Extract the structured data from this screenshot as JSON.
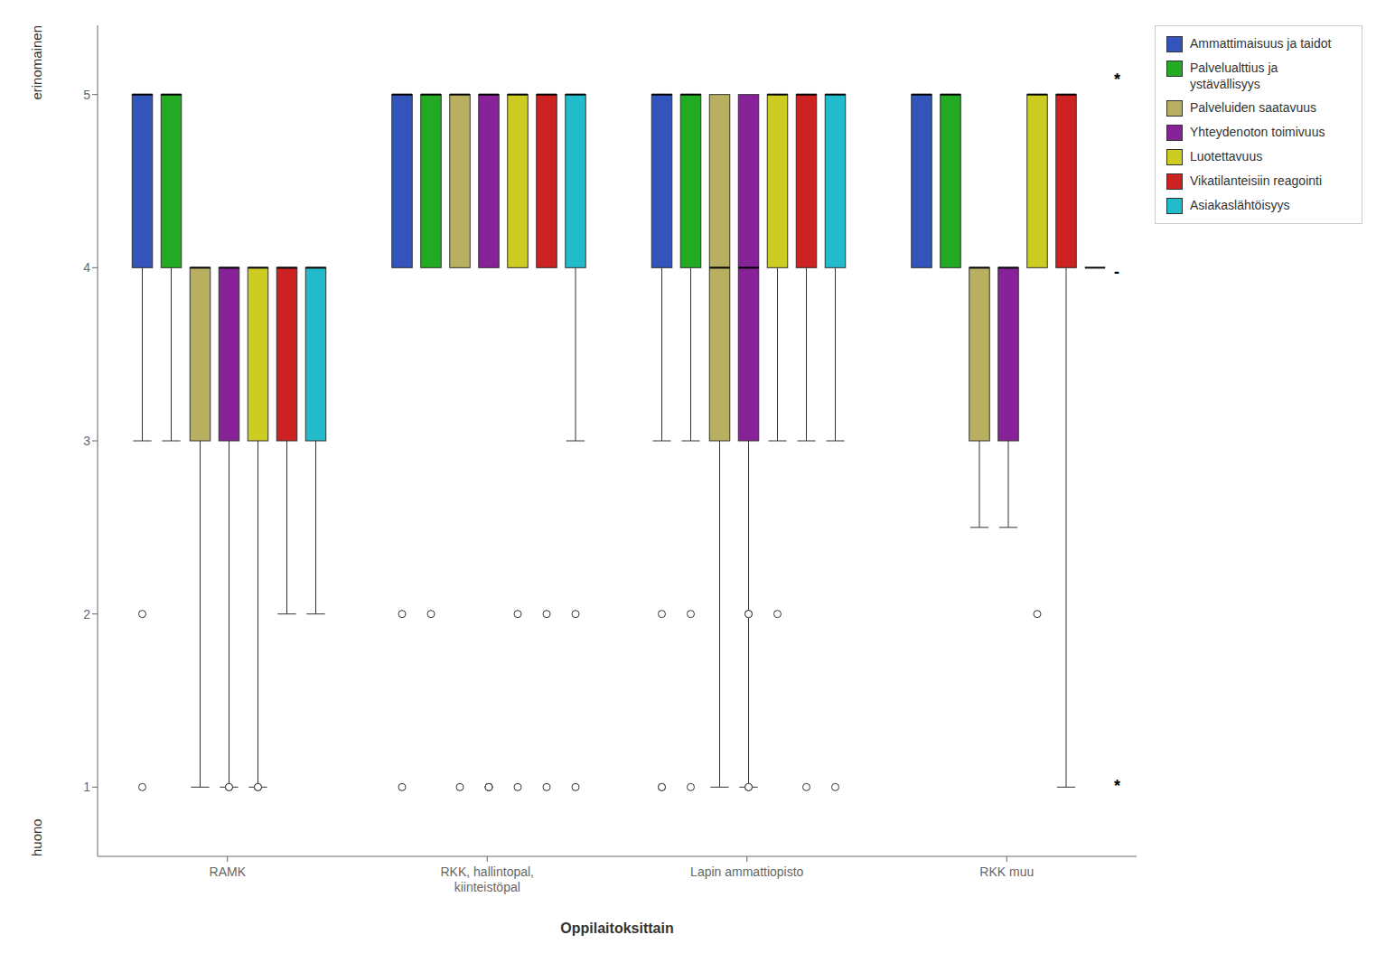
{
  "chart_data": {
    "type": "box",
    "xlabel": "Oppilaitoksittain",
    "ylabel_top": "erinomainen",
    "ylabel_bottom": "huono",
    "ylim": [
      0.6,
      5.4
    ],
    "yticks": [
      1,
      2,
      3,
      4,
      5
    ],
    "grid": false,
    "legend": "right",
    "categories": [
      "RAMK",
      "RKK, hallintopal,\nkiinteistöpal",
      "Lapin ammattiopisto",
      "RKK muu"
    ],
    "annotations": [
      {
        "text": "*",
        "y": 5.08
      },
      {
        "text": "-",
        "y": 3.97
      },
      {
        "text": "*",
        "y": 1.0
      }
    ],
    "series": [
      {
        "name": "Ammattimaisuus ja taidot",
        "color": "#3355bb",
        "values": [
          {
            "q1": 4.0,
            "median": 5.0,
            "q3": 5.0,
            "whisker_low": 3.0,
            "whisker_high": 5.0,
            "outliers": [
              2.0,
              1.0
            ]
          },
          {
            "q1": 4.0,
            "median": 5.0,
            "q3": 5.0,
            "whisker_low": 4.0,
            "whisker_high": 5.0,
            "outliers": [
              2.0,
              1.0
            ]
          },
          {
            "q1": 4.0,
            "median": 5.0,
            "q3": 5.0,
            "whisker_low": 3.0,
            "whisker_high": 5.0,
            "outliers": [
              2.0,
              1.0,
              1.0
            ]
          },
          {
            "q1": 4.0,
            "median": 5.0,
            "q3": 5.0,
            "whisker_low": 4.0,
            "whisker_high": 5.0,
            "outliers": []
          }
        ]
      },
      {
        "name": "Palvelualttius ja\nystävällisyys",
        "color": "#22aa22",
        "values": [
          {
            "q1": 4.0,
            "median": 5.0,
            "q3": 5.0,
            "whisker_low": 3.0,
            "whisker_high": 5.0,
            "outliers": []
          },
          {
            "q1": 4.0,
            "median": 5.0,
            "q3": 5.0,
            "whisker_low": 4.0,
            "whisker_high": 5.0,
            "outliers": [
              2.0
            ]
          },
          {
            "q1": 4.0,
            "median": 5.0,
            "q3": 5.0,
            "whisker_low": 3.0,
            "whisker_high": 5.0,
            "outliers": [
              2.0,
              1.0
            ]
          },
          {
            "q1": 4.0,
            "median": 5.0,
            "q3": 5.0,
            "whisker_low": 4.0,
            "whisker_high": 5.0,
            "outliers": []
          }
        ]
      },
      {
        "name": "Palveluiden saatavuus",
        "color": "#b8b060",
        "values": [
          {
            "q1": 3.0,
            "median": 4.0,
            "q3": 4.0,
            "whisker_low": 1.0,
            "whisker_high": 4.0,
            "outliers": []
          },
          {
            "q1": 4.0,
            "median": 5.0,
            "q3": 5.0,
            "whisker_low": 4.0,
            "whisker_high": 5.0,
            "outliers": [
              1.0
            ]
          },
          {
            "q1": 3.0,
            "median": 4.0,
            "q3": 5.0,
            "whisker_low": 1.0,
            "whisker_high": 5.0,
            "outliers": []
          },
          {
            "q1": 3.0,
            "median": 4.0,
            "q3": 4.0,
            "whisker_low": 2.5,
            "whisker_high": 4.0,
            "outliers": []
          }
        ]
      },
      {
        "name": "Yhteydenoton toimivuus",
        "color": "#882299",
        "values": [
          {
            "q1": 3.0,
            "median": 4.0,
            "q3": 4.0,
            "whisker_low": 1.0,
            "whisker_high": 4.0,
            "outliers": [
              1.0,
              1.0
            ]
          },
          {
            "q1": 4.0,
            "median": 5.0,
            "q3": 5.0,
            "whisker_low": 4.0,
            "whisker_high": 5.0,
            "outliers": [
              1.0,
              1.0,
              1.0,
              1.0
            ]
          },
          {
            "q1": 3.0,
            "median": 4.0,
            "q3": 5.0,
            "whisker_low": 1.0,
            "whisker_high": 5.0,
            "outliers": [
              2.0,
              2.0,
              1.0,
              1.0
            ]
          },
          {
            "q1": 3.0,
            "median": 4.0,
            "q3": 4.0,
            "whisker_low": 2.5,
            "whisker_high": 4.0,
            "outliers": []
          }
        ]
      },
      {
        "name": "Luotettavuus",
        "color": "#cccc22",
        "values": [
          {
            "q1": 3.0,
            "median": 4.0,
            "q3": 4.0,
            "whisker_low": 1.0,
            "whisker_high": 4.0,
            "outliers": [
              1.0,
              1.0
            ]
          },
          {
            "q1": 4.0,
            "median": 5.0,
            "q3": 5.0,
            "whisker_low": 4.0,
            "whisker_high": 5.0,
            "outliers": [
              2.0,
              1.0
            ]
          },
          {
            "q1": 4.0,
            "median": 5.0,
            "q3": 5.0,
            "whisker_low": 3.0,
            "whisker_high": 5.0,
            "outliers": [
              2.0
            ]
          },
          {
            "q1": 4.0,
            "median": 5.0,
            "q3": 5.0,
            "whisker_low": 4.0,
            "whisker_high": 5.0,
            "outliers": [
              2.0
            ]
          }
        ]
      },
      {
        "name": "Vikatilanteisiin reagointi",
        "color": "#cc2222",
        "values": [
          {
            "q1": 3.0,
            "median": 4.0,
            "q3": 4.0,
            "whisker_low": 2.0,
            "whisker_high": 4.0,
            "outliers": []
          },
          {
            "q1": 4.0,
            "median": 5.0,
            "q3": 5.0,
            "whisker_low": 4.0,
            "whisker_high": 5.0,
            "outliers": [
              2.0,
              1.0
            ]
          },
          {
            "q1": 4.0,
            "median": 5.0,
            "q3": 5.0,
            "whisker_low": 3.0,
            "whisker_high": 5.0,
            "outliers": [
              1.0
            ]
          },
          {
            "q1": 4.0,
            "median": 5.0,
            "q3": 5.0,
            "whisker_low": 1.0,
            "whisker_high": 5.0,
            "outliers": []
          }
        ]
      },
      {
        "name": "Asiakaslähtöisyys",
        "color": "#22bbcc",
        "values": [
          {
            "q1": 3.0,
            "median": 4.0,
            "q3": 4.0,
            "whisker_low": 2.0,
            "whisker_high": 4.0,
            "outliers": []
          },
          {
            "q1": 4.0,
            "median": 5.0,
            "q3": 5.0,
            "whisker_low": 3.0,
            "whisker_high": 5.0,
            "outliers": [
              2.0,
              1.0
            ]
          },
          {
            "q1": 4.0,
            "median": 5.0,
            "q3": 5.0,
            "whisker_low": 3.0,
            "whisker_high": 5.0,
            "outliers": [
              1.0
            ]
          },
          {
            "q1": 4.0,
            "median": 4.0,
            "q3": 4.0,
            "whisker_low": 4.0,
            "whisker_high": 4.0,
            "outliers": []
          }
        ]
      }
    ]
  }
}
